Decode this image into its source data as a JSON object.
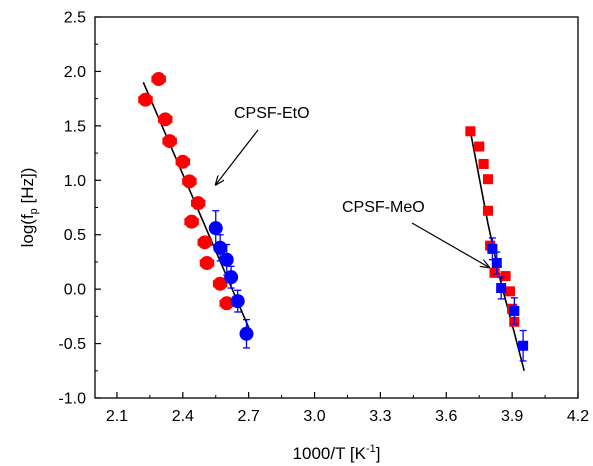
{
  "chart_data": {
    "type": "scatter",
    "xlabel": "1000/T [K",
    "xlabel_sup": "-1",
    "xlabel_end": "]",
    "ylabel": "log(f",
    "ylabel_sub": "p",
    "ylabel_end": " [Hz])",
    "xlim": [
      2.0,
      4.2
    ],
    "ylim": [
      -1.0,
      2.5
    ],
    "x_ticks": [
      2.1,
      2.4,
      2.7,
      3.0,
      3.3,
      3.6,
      3.9,
      4.2
    ],
    "x_tick_labels": [
      "2.1",
      "2.4",
      "2.7",
      "3.0",
      "3.3",
      "3.6",
      "3.9",
      "4.2"
    ],
    "y_ticks": [
      -1.0,
      -0.5,
      0.0,
      0.5,
      1.0,
      1.5,
      2.0,
      2.5
    ],
    "y_tick_labels": [
      "-1.0",
      "-0.5",
      "0.0",
      "0.5",
      "1.0",
      "1.5",
      "2.0",
      "2.5"
    ],
    "annotations": [
      {
        "text": "CPSF-EtO",
        "points_to": [
          2.55,
          0.96
        ]
      },
      {
        "text": "CPSF-MeO",
        "points_to": [
          3.795,
          0.2
        ]
      }
    ],
    "series": [
      {
        "color": "#ff0000",
        "marker": "circle",
        "x": [
          2.23,
          2.29,
          2.32,
          2.34,
          2.4,
          2.43,
          2.47,
          2.44,
          2.5,
          2.51,
          2.57,
          2.6
        ],
        "y": [
          1.74,
          1.93,
          1.56,
          1.36,
          1.17,
          0.99,
          0.79,
          0.62,
          0.43,
          0.24,
          0.05,
          -0.13
        ],
        "xerr": [
          0.03,
          0.03,
          0.03,
          0.03,
          0.03,
          0.03,
          0.03,
          0.03,
          0.03,
          0.03,
          0.03,
          0.03
        ]
      },
      {
        "color": "#0000ff",
        "marker": "circle",
        "x": [
          2.55,
          2.57,
          2.6,
          2.62,
          2.65,
          2.69
        ],
        "y": [
          0.56,
          0.38,
          0.27,
          0.11,
          -0.11,
          -0.41
        ],
        "yerr": [
          0.16,
          0.12,
          0.14,
          0.1,
          0.1,
          0.13
        ]
      },
      {
        "color": "#ff0000",
        "marker": "square",
        "x": [
          3.71,
          3.75,
          3.77,
          3.79,
          3.79,
          3.8,
          3.82,
          3.87,
          3.89,
          3.9,
          3.91
        ],
        "y": [
          1.45,
          1.31,
          1.15,
          1.01,
          0.72,
          0.4,
          0.15,
          0.12,
          -0.02,
          -0.18,
          -0.3
        ],
        "xerr": [
          0.02,
          0.02,
          0.02,
          0.02,
          0.02,
          0.02,
          0.02,
          0.02,
          0.02,
          0.02,
          0.02
        ]
      },
      {
        "color": "#0000ff",
        "marker": "square",
        "x": [
          3.81,
          3.83,
          3.85,
          3.91,
          3.95
        ],
        "y": [
          0.37,
          0.24,
          0.01,
          -0.2,
          -0.52
        ],
        "yerr": [
          0.1,
          0.1,
          0.1,
          0.12,
          0.14
        ]
      }
    ],
    "fits": [
      {
        "color": "#000000",
        "x": [
          2.22,
          2.71
        ],
        "y": [
          1.9,
          -0.4
        ]
      },
      {
        "color": "#000000",
        "x": [
          3.71,
          3.79,
          3.85,
          3.91,
          3.955
        ],
        "y": [
          1.45,
          0.6,
          0.05,
          -0.4,
          -0.75
        ]
      }
    ]
  }
}
